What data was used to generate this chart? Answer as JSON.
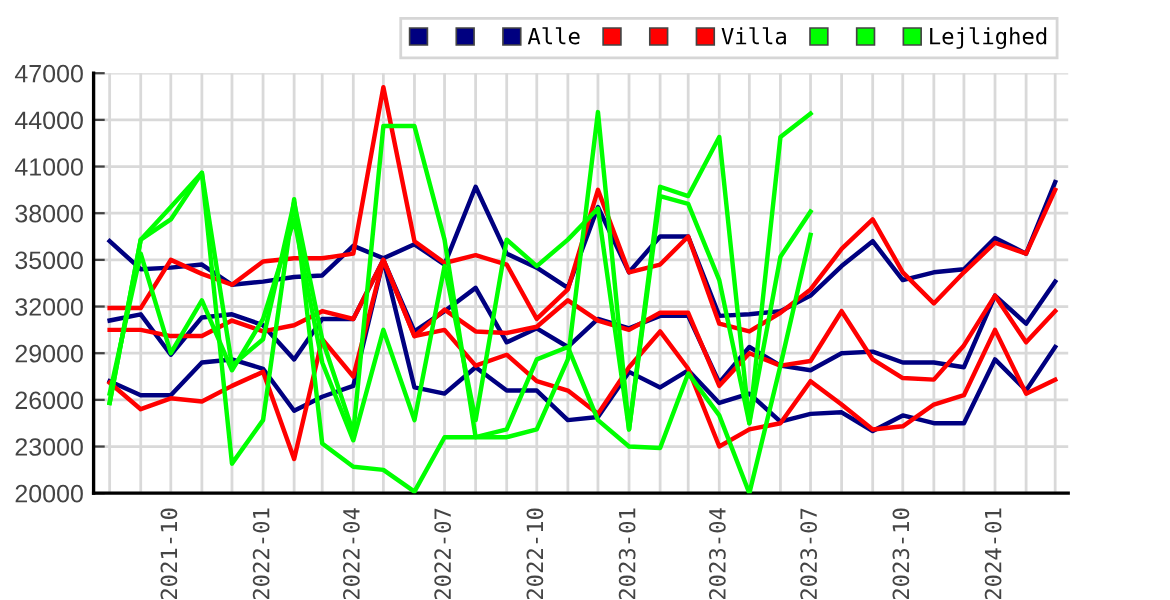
{
  "chart_data": {
    "type": "line",
    "x": [
      "2021-08",
      "2021-09",
      "2021-10",
      "2021-11",
      "2021-12",
      "2022-01",
      "2022-02",
      "2022-03",
      "2022-04",
      "2022-05",
      "2022-06",
      "2022-07",
      "2022-08",
      "2022-09",
      "2022-10",
      "2022-11",
      "2022-12",
      "2023-01",
      "2023-02",
      "2023-03",
      "2023-04",
      "2023-05",
      "2023-06",
      "2023-07",
      "2023-08",
      "2023-09",
      "2023-10",
      "2023-11",
      "2023-12",
      "2024-01",
      "2024-02",
      "2024-03"
    ],
    "series": [
      {
        "color": "#000080",
        "values": [
          36200,
          34400,
          34500,
          34700,
          33400,
          33600,
          33900,
          34000,
          35900,
          35100,
          36000,
          34700,
          39700,
          35400,
          34500,
          33200,
          38400,
          34200,
          36500,
          36500,
          31400,
          31500,
          31700,
          32700,
          34600,
          36200,
          33700,
          34200,
          34400,
          36400,
          35400,
          40000
        ]
      },
      {
        "color": "#000080",
        "values": [
          31100,
          31500,
          28900,
          31300,
          31500,
          30800,
          28600,
          31200,
          31200,
          35000,
          30400,
          31700,
          33200,
          29700,
          30600,
          29400,
          31200,
          30600,
          31400,
          31400,
          27100,
          29400,
          28200,
          27900,
          29000,
          29100,
          28400,
          28400,
          28100,
          32700,
          30900,
          33600
        ]
      },
      {
        "name": "Alle",
        "color": "#000080",
        "values": [
          27200,
          26300,
          26300,
          28400,
          28600,
          28000,
          25300,
          26200,
          26900,
          35000,
          26800,
          26400,
          28100,
          26600,
          26600,
          24700,
          24900,
          27800,
          26800,
          27900,
          25800,
          26400,
          24600,
          25100,
          25200,
          24000,
          25000,
          24500,
          24500,
          28600,
          26600,
          29400
        ]
      },
      {
        "color": "#ff0000",
        "values": [
          31900,
          31900,
          35000,
          34100,
          33400,
          34900,
          35100,
          35100,
          35400,
          46100,
          36200,
          34800,
          35300,
          34700,
          31200,
          33100,
          39500,
          34200,
          34700,
          36500,
          30900,
          30400,
          31600,
          33100,
          35700,
          37600,
          34200,
          32200,
          34200,
          36100,
          35400,
          39500
        ]
      },
      {
        "color": "#ff0000",
        "values": [
          30500,
          30500,
          30100,
          30100,
          31100,
          30400,
          30800,
          31700,
          31200,
          35000,
          30100,
          31800,
          30400,
          30300,
          30700,
          32400,
          31100,
          30500,
          31600,
          31600,
          26900,
          29000,
          28200,
          28500,
          31700,
          28600,
          27400,
          27300,
          29500,
          32700,
          29700,
          31700
        ]
      },
      {
        "name": "Villa",
        "color": "#ff0000",
        "values": [
          27100,
          25400,
          26100,
          25900,
          26900,
          27800,
          22200,
          29900,
          27500,
          35000,
          30100,
          30500,
          28200,
          28900,
          27200,
          26600,
          25100,
          28100,
          30400,
          28000,
          23000,
          24100,
          24500,
          27200,
          25700,
          24100,
          24300,
          25700,
          26300,
          30500,
          26400,
          27300
        ]
      },
      {
        "color": "#00ff00",
        "values": [
          25800,
          36300,
          38400,
          40600,
          21900,
          24700,
          38900,
          23200,
          21700,
          21500,
          20100,
          23600,
          23600,
          24100,
          28600,
          29400,
          24700,
          23000,
          22900,
          27700,
          25000,
          20000,
          28200,
          36600,
          null,
          null,
          null,
          null,
          null,
          null,
          null,
          null
        ]
      },
      {
        "color": "#00ff00",
        "values": [
          26400,
          35400,
          29000,
          32400,
          27900,
          31200,
          37600,
          28400,
          23400,
          30500,
          24700,
          34600,
          24700,
          36300,
          34600,
          36300,
          38300,
          24100,
          39100,
          38600,
          33700,
          24500,
          35200,
          38100,
          null,
          null,
          null,
          null,
          null,
          null,
          null,
          null
        ]
      },
      {
        "name": "Lejlighed",
        "color": "#00ff00",
        "values": [
          25800,
          36300,
          37600,
          40600,
          28200,
          29900,
          38700,
          29900,
          23900,
          43600,
          43600,
          36300,
          23600,
          23600,
          24100,
          28600,
          44500,
          24100,
          39700,
          39100,
          42900,
          24500,
          42900,
          44400,
          null,
          null,
          null,
          null,
          null,
          null,
          null,
          null
        ]
      }
    ],
    "xlim": [
      "2021-07-16",
      "2024-03-14"
    ],
    "xticks": [
      {
        "value": "2021-08",
        "label": null
      },
      {
        "value": "2021-09",
        "label": null
      },
      {
        "value": "2021-10",
        "label": "2021-10"
      },
      {
        "value": "2021-11",
        "label": null
      },
      {
        "value": "2021-12",
        "label": null
      },
      {
        "value": "2022-01",
        "label": "2022-01"
      },
      {
        "value": "2022-02",
        "label": null
      },
      {
        "value": "2022-03",
        "label": null
      },
      {
        "value": "2022-04",
        "label": "2022-04"
      },
      {
        "value": "2022-05",
        "label": null
      },
      {
        "value": "2022-06",
        "label": null
      },
      {
        "value": "2022-07",
        "label": "2022-07"
      },
      {
        "value": "2022-08",
        "label": null
      },
      {
        "value": "2022-09",
        "label": null
      },
      {
        "value": "2022-10",
        "label": "2022-10"
      },
      {
        "value": "2022-11",
        "label": null
      },
      {
        "value": "2022-12",
        "label": null
      },
      {
        "value": "2023-01",
        "label": "2023-01"
      },
      {
        "value": "2023-02",
        "label": null
      },
      {
        "value": "2023-03",
        "label": null
      },
      {
        "value": "2023-04",
        "label": "2023-04"
      },
      {
        "value": "2023-05",
        "label": null
      },
      {
        "value": "2023-06",
        "label": null
      },
      {
        "value": "2023-07",
        "label": "2023-07"
      },
      {
        "value": "2023-08",
        "label": null
      },
      {
        "value": "2023-09",
        "label": null
      },
      {
        "value": "2023-10",
        "label": "2023-10"
      },
      {
        "value": "2023-11",
        "label": null
      },
      {
        "value": "2023-12",
        "label": null
      },
      {
        "value": "2024-01",
        "label": "2024-01"
      },
      {
        "value": "2024-02",
        "label": null
      },
      {
        "value": "2024-03",
        "label": null
      }
    ],
    "ylim": [
      20000,
      47000
    ],
    "yticks": [
      20000,
      23000,
      26000,
      29000,
      32000,
      35000,
      38000,
      41000,
      44000,
      47000
    ],
    "grid": true,
    "legend": "top right",
    "marker": "none",
    "line_style": "solid"
  }
}
